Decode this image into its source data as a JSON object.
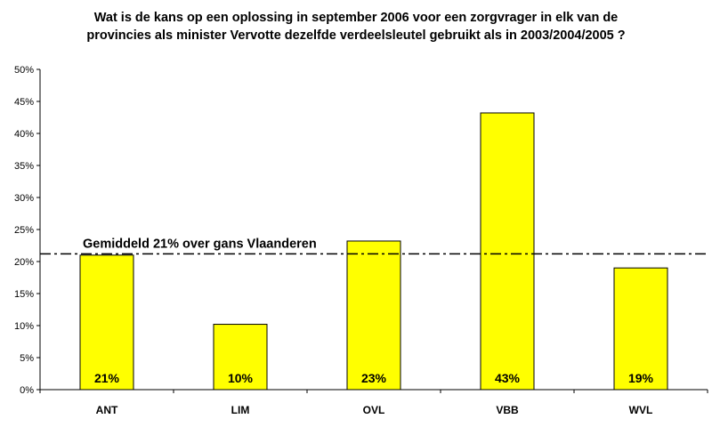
{
  "chart_data": {
    "type": "bar",
    "title_lines": [
      "Wat is de kans op een oplossing in september 2006 voor een zorgvrager in elk van de",
      "provincies als minister Vervotte dezelfde verdeelsleutel gebruikt als in 2003/2004/2005 ?"
    ],
    "categories": [
      "ANT",
      "LIM",
      "OVL",
      "VBB",
      "WVL"
    ],
    "values": [
      21,
      10.2,
      23.2,
      43.2,
      19
    ],
    "data_labels": [
      "21%",
      "10%",
      "23%",
      "43%",
      "19%"
    ],
    "ylim": [
      0,
      50
    ],
    "y_ticks": [
      0,
      5,
      10,
      15,
      20,
      25,
      30,
      35,
      40,
      45,
      50
    ],
    "y_tick_labels": [
      "0%",
      "5%",
      "10%",
      "15%",
      "20%",
      "25%",
      "30%",
      "35%",
      "40%",
      "45%",
      "50%"
    ],
    "xlabel": "",
    "ylabel": "",
    "grid": false,
    "bar_color": "#FFFF00",
    "bar_edge_color": "#000000",
    "reference_line": {
      "value": 21.2,
      "label": "Gemiddeld 21% over gans Vlaanderen",
      "style": "dash-dot"
    }
  }
}
